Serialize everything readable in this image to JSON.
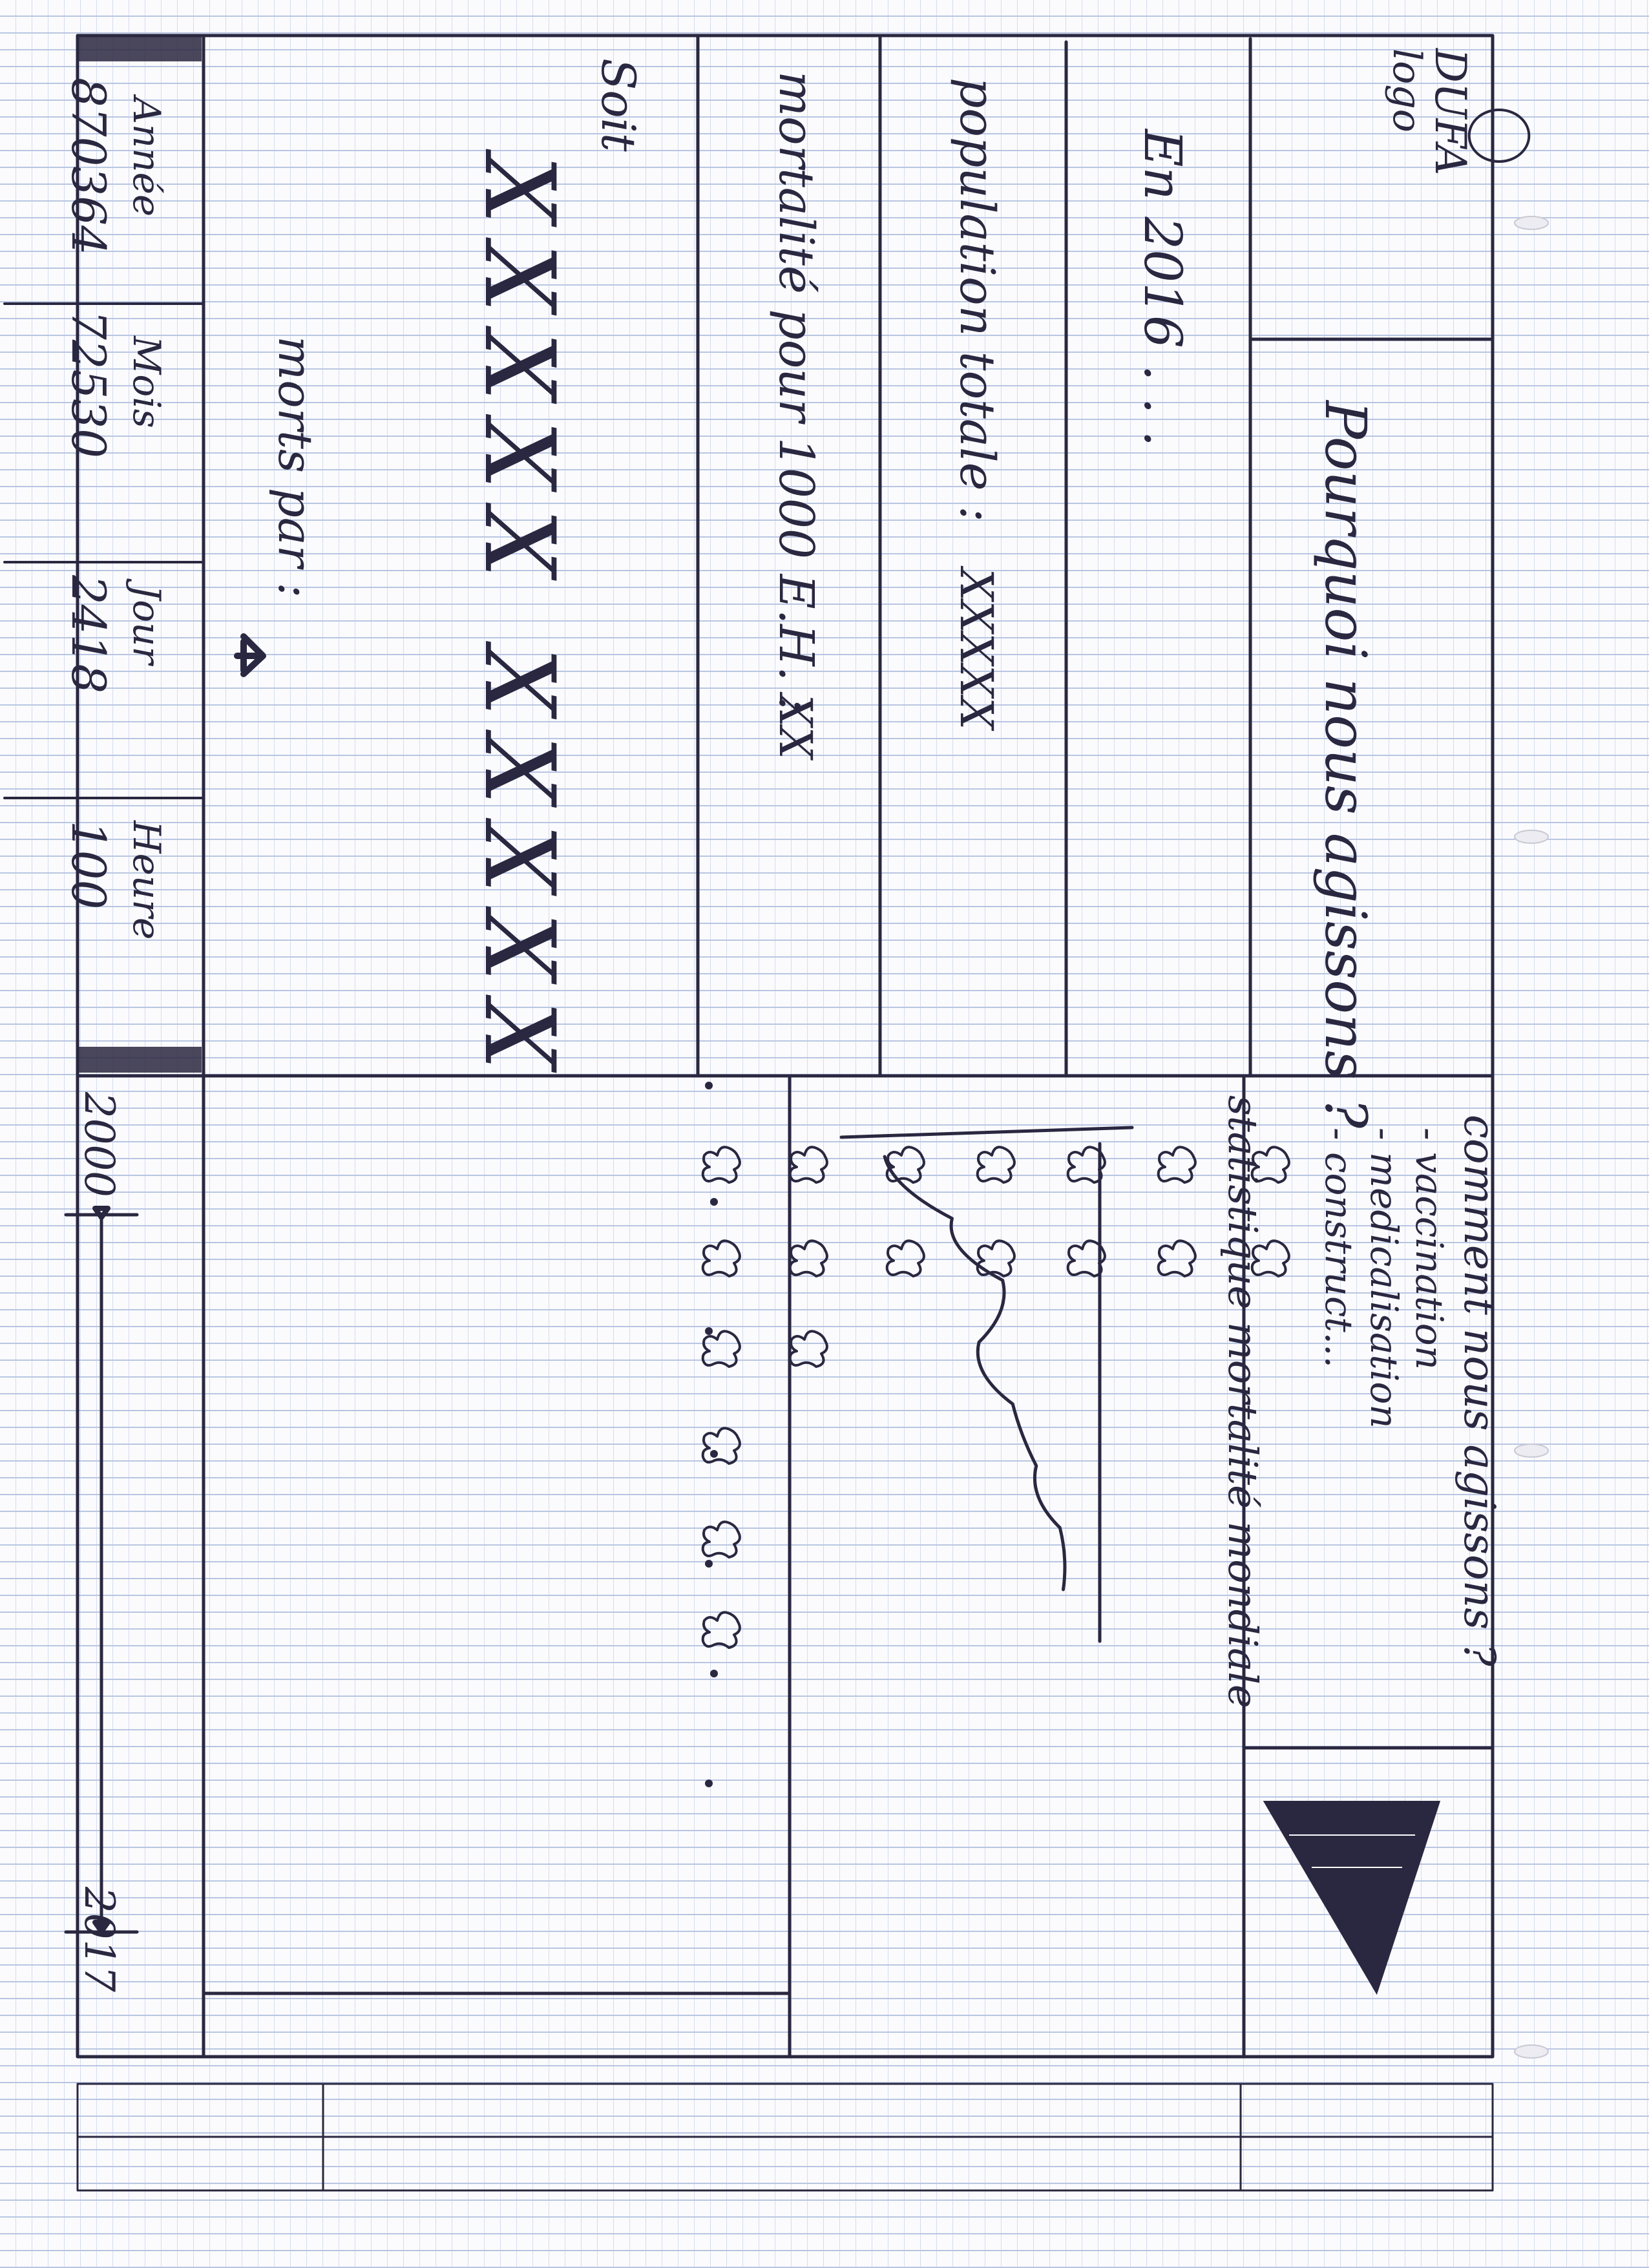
{
  "logo": {
    "name": "DUFA",
    "caption": "logo"
  },
  "title_question": "Pourquoi nous agissons ?",
  "intro": "En 2016 . . .",
  "stats": {
    "population_label": "population totale :",
    "population_value": "XXXXX",
    "mortality_label": "mortalité pour 1000 E.H. :",
    "mortality_value": "XX",
    "total_label": "Soit",
    "total_value": "XXXXX XXXXX",
    "deaths_label": "morts par :"
  },
  "how_section": {
    "title": "comment nous agissons ?",
    "items": [
      "- vaccination",
      "- medicalisation",
      "- construct..."
    ]
  },
  "chart": {
    "caption": "statistique mortalité mondiale"
  },
  "chart_data": {
    "type": "line",
    "title": "statistique mortalité mondiale",
    "xlabel": "",
    "ylabel": "",
    "note": "hand-drawn sketch, unlabeled axes",
    "series": [
      {
        "values": [
          10,
          30,
          45,
          38,
          48,
          55,
          62,
          63
        ]
      }
    ]
  },
  "counters": [
    {
      "label": "Année",
      "value": "870364"
    },
    {
      "label": "Mois",
      "value": "72530"
    },
    {
      "label": "Jour",
      "value": "2418"
    },
    {
      "label": "Heure",
      "value": "100"
    }
  ],
  "timeline": {
    "start": "2000",
    "end": "2017"
  },
  "colors": {
    "ink": "#2a2740",
    "paper": "#fbfbfd",
    "rule": "#b9c6e2"
  }
}
